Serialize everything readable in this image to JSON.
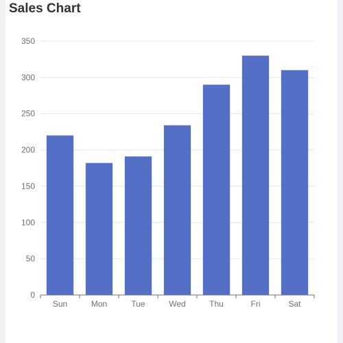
{
  "chart_data": {
    "type": "bar",
    "title": "Sales Chart",
    "categories": [
      "Sun",
      "Mon",
      "Tue",
      "Wed",
      "Thu",
      "Fri",
      "Sat"
    ],
    "values": [
      220,
      182,
      191,
      234,
      290,
      330,
      310
    ],
    "ylim": [
      0,
      350
    ],
    "yticks": [
      0,
      50,
      100,
      150,
      200,
      250,
      300,
      350
    ],
    "grid": true,
    "xlabel": "",
    "ylabel": "",
    "colors": {
      "bar": "#5470c6",
      "grid": "#e0e6f1",
      "axis": "#6e7079"
    }
  }
}
